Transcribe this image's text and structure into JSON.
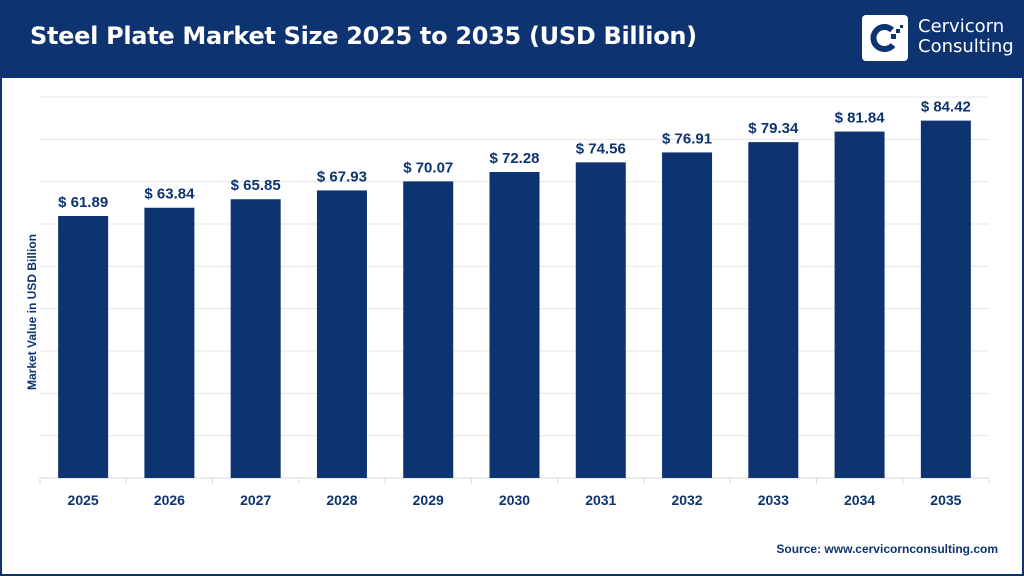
{
  "header": {
    "title": "Steel Plate Market Size 2025 to 2035 (USD Billion)",
    "logo_text": [
      "Cervicorn",
      "Consulting"
    ]
  },
  "source": "Source: www.cervicornconsulting.com",
  "colors": {
    "bar": "#0d3370",
    "header": "#0d3370",
    "grid": "#e6e6e6"
  },
  "chart_data": {
    "type": "bar",
    "title": "Steel Plate Market Size 2025 to 2035 (USD Billion)",
    "xlabel": "",
    "ylabel": "Market Value in USD Billion",
    "categories": [
      "2025",
      "2026",
      "2027",
      "2028",
      "2029",
      "2030",
      "2031",
      "2032",
      "2033",
      "2034",
      "2035"
    ],
    "values": [
      61.89,
      63.84,
      65.85,
      67.93,
      70.07,
      72.28,
      74.56,
      76.91,
      79.34,
      81.84,
      84.42
    ],
    "data_labels": [
      "$ 61.89",
      "$ 63.84",
      "$ 65.85",
      "$ 67.93",
      "$ 70.07",
      "$ 72.28",
      "$ 74.56",
      "$ 76.91",
      "$ 79.34",
      "$ 81.84",
      "$ 84.42"
    ],
    "ylim": [
      0,
      90
    ],
    "grid": true,
    "y_tick_labels_shown": false
  }
}
